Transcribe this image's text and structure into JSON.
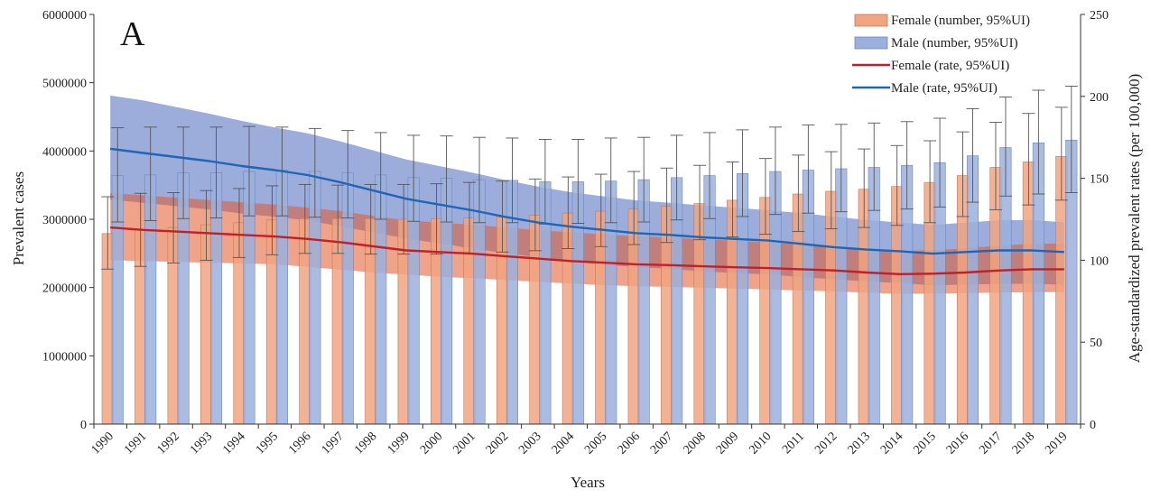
{
  "chart_data": {
    "type": "bar",
    "panel_label": "A",
    "title": "",
    "xlabel": "Years",
    "ylabel": "Prevalent cases",
    "y2label": "Age-standardized prevalent rates (per 100,000)",
    "ylim": [
      0,
      6000000
    ],
    "y2lim": [
      0,
      250
    ],
    "yticks": [
      "0",
      "1000000",
      "2000000",
      "3000000",
      "4000000",
      "5000000",
      "6000000"
    ],
    "y2ticks": [
      "0",
      "50",
      "100",
      "150",
      "200",
      "250"
    ],
    "categories": [
      "1990",
      "1991",
      "1992",
      "1993",
      "1994",
      "1995",
      "1996",
      "1997",
      "1998",
      "1999",
      "2000",
      "2001",
      "2002",
      "2003",
      "2004",
      "2005",
      "2006",
      "2007",
      "2008",
      "2009",
      "2010",
      "2011",
      "2012",
      "2013",
      "2014",
      "2015",
      "2016",
      "2017",
      "2018",
      "2019"
    ],
    "legend_position": "top-right",
    "colors": {
      "female_bar": "#f0a480",
      "female_bar_edge": "#c97a55",
      "male_bar": "#9bb0dc",
      "male_bar_edge": "#6f86bd",
      "female_line": "#c0202a",
      "male_line": "#1f66b5",
      "female_band": "#e25a2a",
      "male_band": "#4a67bd",
      "axis": "#333333",
      "error": "#555555"
    },
    "series": [
      {
        "name": "Female (number, 95%UI)",
        "kind": "bar",
        "axis": "left",
        "values": [
          2790000,
          2840000,
          2880000,
          2920000,
          2950000,
          2990000,
          3010000,
          3010000,
          3010000,
          3000000,
          3010000,
          3020000,
          3030000,
          3060000,
          3090000,
          3120000,
          3150000,
          3190000,
          3230000,
          3280000,
          3320000,
          3370000,
          3410000,
          3440000,
          3480000,
          3540000,
          3640000,
          3760000,
          3840000,
          3920000
        ],
        "lower": [
          2270000,
          2310000,
          2360000,
          2400000,
          2440000,
          2480000,
          2500000,
          2500000,
          2490000,
          2490000,
          2490000,
          2500000,
          2520000,
          2540000,
          2570000,
          2600000,
          2630000,
          2660000,
          2700000,
          2740000,
          2780000,
          2820000,
          2860000,
          2880000,
          2910000,
          2950000,
          3040000,
          3140000,
          3210000,
          3280000
        ],
        "upper": [
          3330000,
          3380000,
          3390000,
          3420000,
          3450000,
          3490000,
          3510000,
          3500000,
          3510000,
          3510000,
          3520000,
          3540000,
          3560000,
          3590000,
          3620000,
          3660000,
          3700000,
          3750000,
          3790000,
          3840000,
          3890000,
          3940000,
          3990000,
          4030000,
          4080000,
          4150000,
          4280000,
          4420000,
          4550000,
          4640000
        ]
      },
      {
        "name": "Male (number, 95%UI)",
        "kind": "bar",
        "axis": "left",
        "values": [
          3640000,
          3650000,
          3680000,
          3680000,
          3700000,
          3720000,
          3700000,
          3680000,
          3650000,
          3610000,
          3600000,
          3580000,
          3570000,
          3550000,
          3550000,
          3560000,
          3580000,
          3610000,
          3640000,
          3670000,
          3700000,
          3720000,
          3740000,
          3760000,
          3790000,
          3830000,
          3930000,
          4050000,
          4120000,
          4160000
        ],
        "lower": [
          2960000,
          2980000,
          3010000,
          3020000,
          3050000,
          3050000,
          3030000,
          3020000,
          3000000,
          2970000,
          2960000,
          2950000,
          2950000,
          2930000,
          2940000,
          2950000,
          2960000,
          2990000,
          3010000,
          3040000,
          3070000,
          3090000,
          3110000,
          3130000,
          3150000,
          3180000,
          3250000,
          3340000,
          3370000,
          3390000
        ],
        "upper": [
          4340000,
          4350000,
          4350000,
          4350000,
          4360000,
          4350000,
          4330000,
          4300000,
          4270000,
          4230000,
          4220000,
          4200000,
          4190000,
          4170000,
          4170000,
          4190000,
          4200000,
          4230000,
          4270000,
          4310000,
          4350000,
          4380000,
          4390000,
          4410000,
          4430000,
          4480000,
          4620000,
          4790000,
          4890000,
          4950000
        ]
      },
      {
        "name": "Female (rate, 95%UI)",
        "kind": "line",
        "axis": "right",
        "values": [
          120,
          118.5,
          117.5,
          116.5,
          115.5,
          114.5,
          113,
          111,
          108.5,
          106,
          105,
          104,
          102.5,
          101,
          99.5,
          98.5,
          97.5,
          97,
          96.3,
          95.7,
          95.2,
          94.5,
          93.8,
          92.5,
          91.5,
          91.8,
          92.5,
          93.7,
          94.5,
          94.5
        ],
        "lower": [
          100,
          99.5,
          99,
          98.5,
          98,
          97.5,
          96,
          94.2,
          92.5,
          91.2,
          90,
          89,
          88,
          86.8,
          85.8,
          84.8,
          84.2,
          83.7,
          83.2,
          82.7,
          82.1,
          81.5,
          81,
          80.2,
          79.5,
          79.6,
          79.9,
          80.3,
          80.5,
          80.5
        ],
        "upper": [
          141,
          139.6,
          138.2,
          136.8,
          135.4,
          134,
          132,
          130,
          127,
          124.3,
          123,
          121.7,
          120,
          118.4,
          117,
          115.8,
          114.7,
          113.8,
          112.8,
          111.9,
          110.8,
          109.5,
          108.4,
          107,
          105.6,
          106.1,
          107.2,
          108.9,
          110.1,
          110.2
        ]
      },
      {
        "name": "Male (rate, 95%UI)",
        "kind": "line",
        "axis": "right",
        "values": [
          168,
          165.5,
          163,
          160.5,
          157.5,
          155,
          152,
          147.5,
          142.5,
          137.5,
          134,
          130.5,
          126.5,
          123,
          120.5,
          118.5,
          116.5,
          115.5,
          114,
          113,
          112,
          110,
          108,
          106.5,
          105.5,
          104,
          105,
          106,
          106,
          105
        ],
        "lower": [
          137,
          135,
          133,
          131,
          128.5,
          126.5,
          124.3,
          120.6,
          117,
          113.2,
          110.3,
          107.2,
          104.3,
          101.7,
          99.2,
          97.3,
          95.8,
          94.7,
          93.2,
          92.2,
          91.4,
          89.7,
          88.4,
          87,
          86.1,
          84.7,
          85.2,
          85.5,
          85.7,
          85
        ],
        "upper": [
          200.5,
          197.5,
          193.5,
          189.5,
          185,
          181,
          177.5,
          172.5,
          167,
          161.5,
          157.5,
          153.5,
          149,
          145,
          141.5,
          139,
          136.5,
          135,
          133.5,
          132,
          130.5,
          128.8,
          126.6,
          124.6,
          123,
          121.6,
          122.9,
          124.4,
          124.5,
          123.2
        ]
      }
    ]
  }
}
